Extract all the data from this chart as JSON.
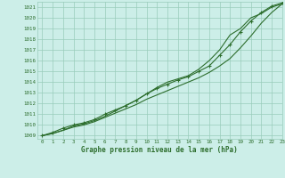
{
  "title": "Graphe pression niveau de la mer (hPa)",
  "bg_color": "#cceee8",
  "grid_color": "#99ccbb",
  "line_color": "#2d6e2d",
  "marker_color": "#2d6e2d",
  "xlim": [
    -0.5,
    23
  ],
  "ylim": [
    1008.7,
    1021.5
  ],
  "yticks": [
    1009,
    1010,
    1011,
    1012,
    1013,
    1014,
    1015,
    1016,
    1017,
    1018,
    1019,
    1020,
    1021
  ],
  "xticks": [
    0,
    1,
    2,
    3,
    4,
    5,
    6,
    7,
    8,
    9,
    10,
    11,
    12,
    13,
    14,
    15,
    16,
    17,
    18,
    19,
    20,
    21,
    22,
    23
  ],
  "series1_x": [
    0,
    1,
    2,
    3,
    4,
    5,
    6,
    7,
    8,
    9,
    10,
    11,
    12,
    13,
    14,
    15,
    16,
    17,
    18,
    19,
    20,
    21,
    22,
    23
  ],
  "series1_y": [
    1009.0,
    1009.2,
    1009.5,
    1009.8,
    1010.0,
    1010.3,
    1010.7,
    1011.1,
    1011.5,
    1011.9,
    1012.4,
    1012.8,
    1013.2,
    1013.6,
    1014.0,
    1014.4,
    1014.9,
    1015.5,
    1016.2,
    1017.2,
    1018.3,
    1019.5,
    1020.5,
    1021.3
  ],
  "series2_x": [
    0,
    1,
    2,
    3,
    4,
    5,
    6,
    7,
    8,
    9,
    10,
    11,
    12,
    13,
    14,
    15,
    16,
    17,
    18,
    19,
    20,
    21,
    22,
    23
  ],
  "series2_y": [
    1009.0,
    1009.3,
    1009.7,
    1010.0,
    1010.2,
    1010.5,
    1011.0,
    1011.4,
    1011.8,
    1012.3,
    1012.9,
    1013.4,
    1013.8,
    1014.2,
    1014.5,
    1015.0,
    1015.5,
    1016.5,
    1017.5,
    1018.7,
    1019.7,
    1020.5,
    1021.1,
    1021.4
  ],
  "series3_x": [
    0,
    1,
    2,
    3,
    4,
    5,
    6,
    7,
    8,
    9,
    10,
    11,
    12,
    13,
    14,
    15,
    16,
    17,
    18,
    19,
    20,
    21,
    22,
    23
  ],
  "series3_y": [
    1009.0,
    1009.2,
    1009.5,
    1009.9,
    1010.1,
    1010.4,
    1010.8,
    1011.3,
    1011.8,
    1012.3,
    1012.9,
    1013.5,
    1014.0,
    1014.3,
    1014.6,
    1015.2,
    1016.0,
    1017.0,
    1018.4,
    1019.0,
    1020.0,
    1020.4,
    1021.0,
    1021.3
  ]
}
